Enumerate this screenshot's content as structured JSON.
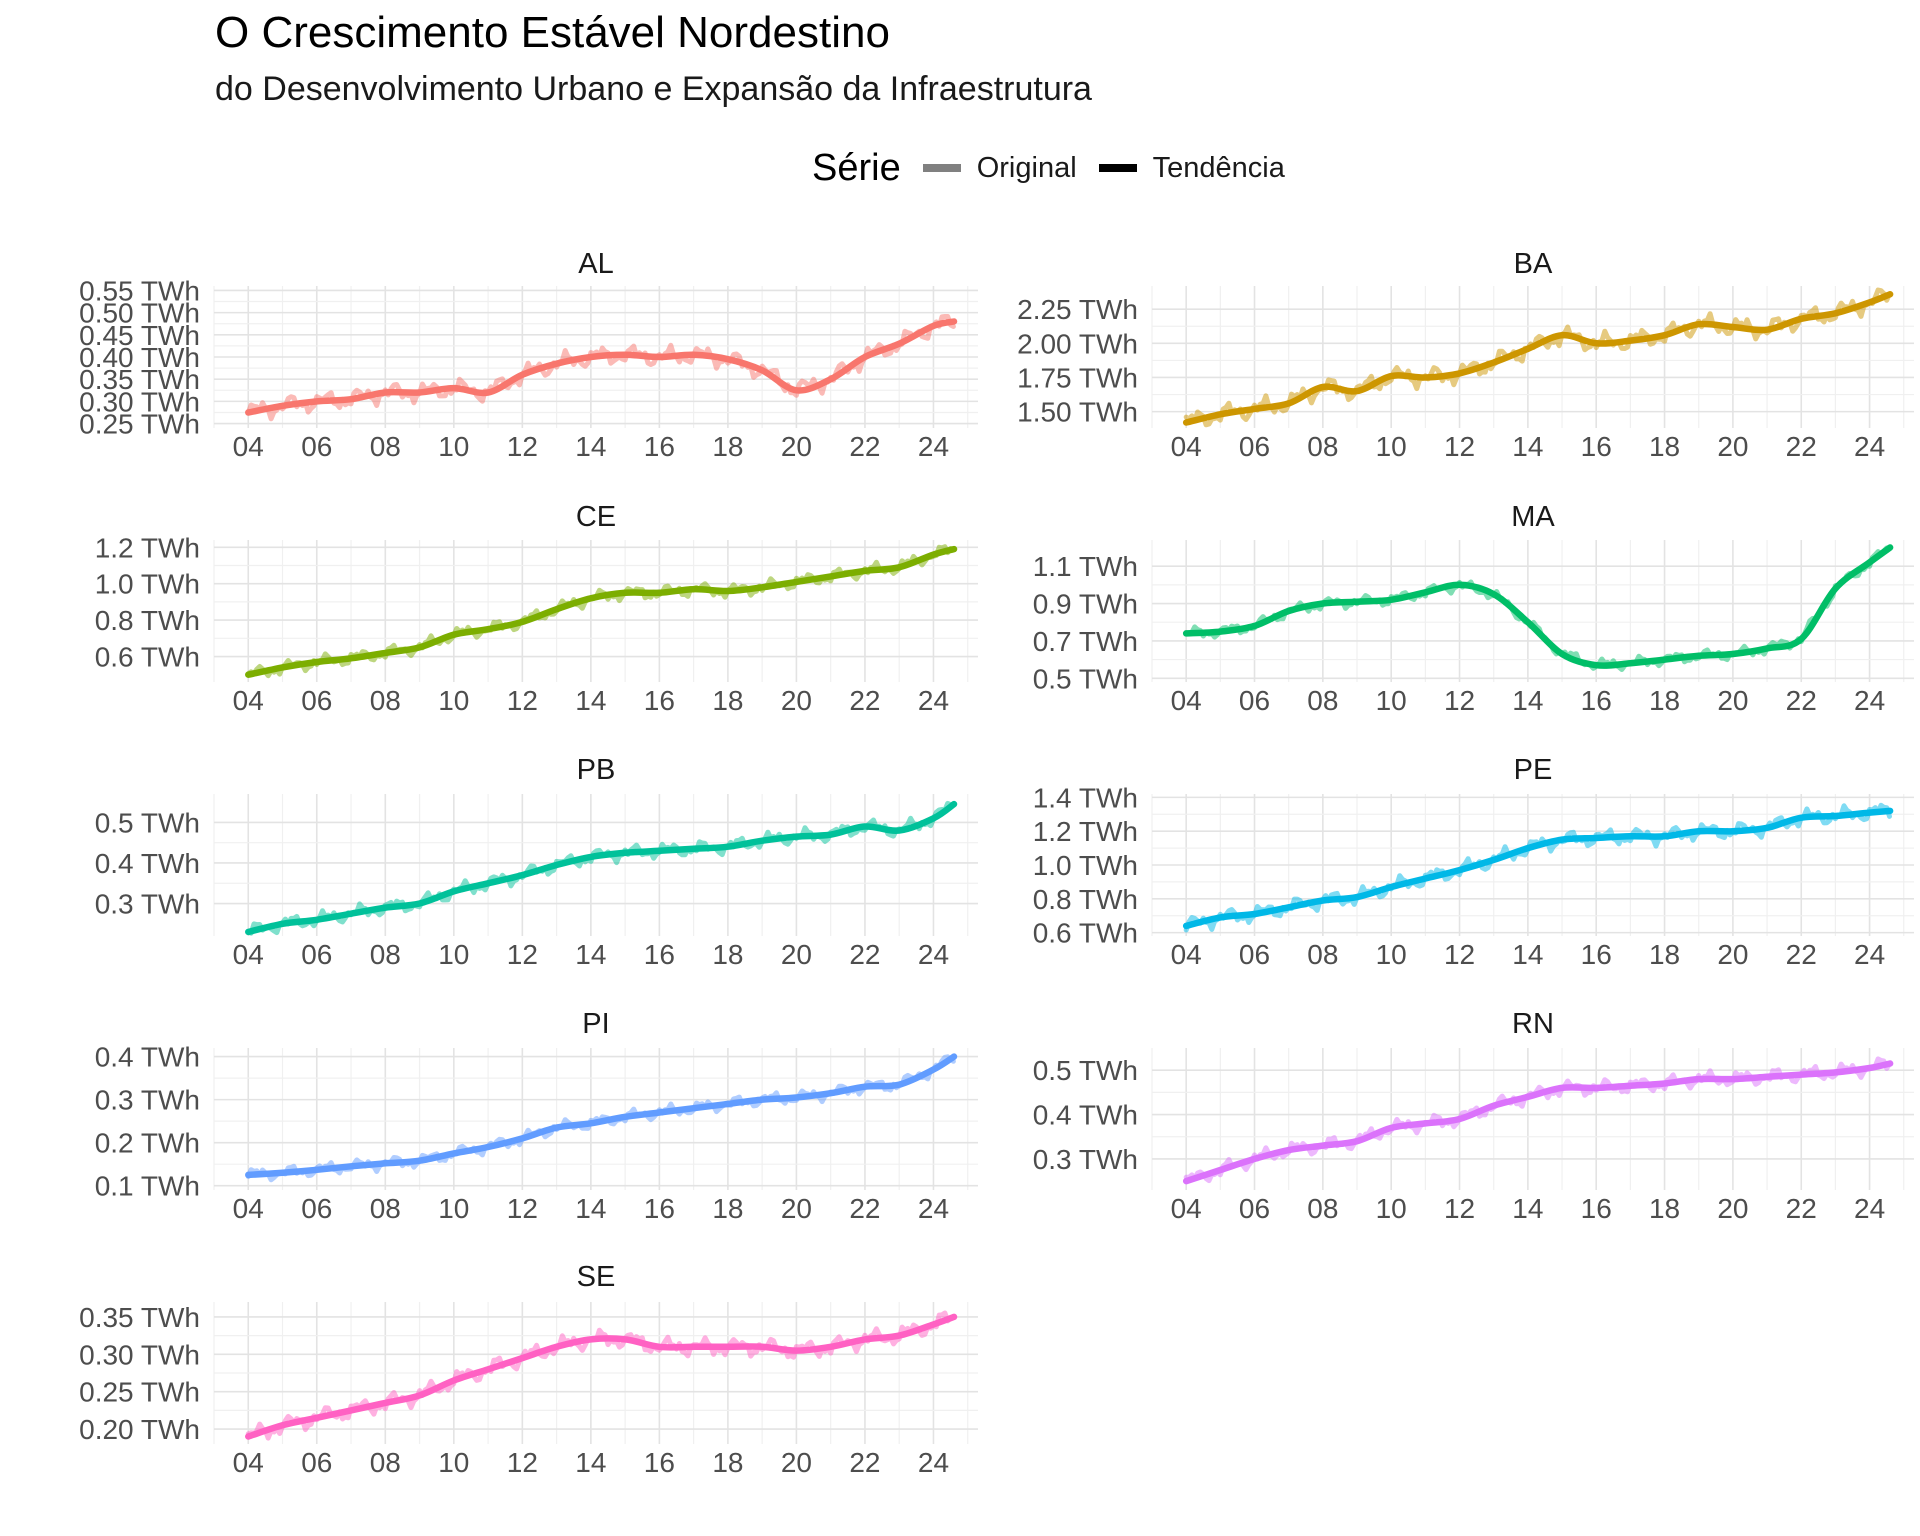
{
  "title": "O Crescimento Estável Nordestino",
  "subtitle": "do Desenvolvimento Urbano e Expansão da Infraestrutura",
  "legend": {
    "title": "Série",
    "items": [
      {
        "label": "Original",
        "color": "#808080"
      },
      {
        "label": "Tendência",
        "color": "#000000"
      }
    ]
  },
  "chart_data": {
    "type": "line",
    "facet_by": "state",
    "x_unit": "year (2-digit)",
    "y_unit": "TWh",
    "x_ticks": [
      "04",
      "06",
      "08",
      "10",
      "12",
      "14",
      "16",
      "18",
      "20",
      "22",
      "24"
    ],
    "xlim": [
      2003.0,
      2025.3
    ],
    "grid": true,
    "legend_position": "top",
    "panels": [
      {
        "name": "AL",
        "color": "#F8766D",
        "ylim": [
          0.24,
          0.56
        ],
        "y_ticks": [
          0.25,
          0.3,
          0.35,
          0.4,
          0.45,
          0.5,
          0.55
        ],
        "y_tick_labels": [
          "0.25 TWh",
          "0.30 TWh",
          "0.35 TWh",
          "0.40 TWh",
          "0.45 TWh",
          "0.50 TWh",
          "0.55 TWh"
        ],
        "trend": [
          [
            2004,
            0.275
          ],
          [
            2005,
            0.29
          ],
          [
            2006,
            0.3
          ],
          [
            2007,
            0.305
          ],
          [
            2008,
            0.32
          ],
          [
            2009,
            0.32
          ],
          [
            2010,
            0.33
          ],
          [
            2011,
            0.32
          ],
          [
            2012,
            0.36
          ],
          [
            2013,
            0.385
          ],
          [
            2014,
            0.4
          ],
          [
            2015,
            0.405
          ],
          [
            2016,
            0.4
          ],
          [
            2017,
            0.405
          ],
          [
            2018,
            0.395
          ],
          [
            2019,
            0.37
          ],
          [
            2020,
            0.325
          ],
          [
            2021,
            0.35
          ],
          [
            2022,
            0.4
          ],
          [
            2023,
            0.43
          ],
          [
            2024,
            0.47
          ],
          [
            2024.6,
            0.48
          ]
        ],
        "noise": 0.018
      },
      {
        "name": "BA",
        "color": "#CD9600",
        "ylim": [
          1.38,
          2.42
        ],
        "y_ticks": [
          1.5,
          1.75,
          2.0,
          2.25
        ],
        "y_tick_labels": [
          "1.50 TWh",
          "1.75 TWh",
          "2.00 TWh",
          "2.25 TWh"
        ],
        "trend": [
          [
            2004,
            1.42
          ],
          [
            2005,
            1.48
          ],
          [
            2006,
            1.52
          ],
          [
            2007,
            1.56
          ],
          [
            2008,
            1.68
          ],
          [
            2009,
            1.65
          ],
          [
            2010,
            1.76
          ],
          [
            2011,
            1.75
          ],
          [
            2012,
            1.78
          ],
          [
            2013,
            1.86
          ],
          [
            2014,
            1.96
          ],
          [
            2015,
            2.06
          ],
          [
            2016,
            2.0
          ],
          [
            2017,
            2.02
          ],
          [
            2018,
            2.06
          ],
          [
            2019,
            2.14
          ],
          [
            2020,
            2.12
          ],
          [
            2021,
            2.1
          ],
          [
            2022,
            2.18
          ],
          [
            2023,
            2.22
          ],
          [
            2024,
            2.3
          ],
          [
            2024.6,
            2.36
          ]
        ],
        "noise": 0.06
      },
      {
        "name": "CE",
        "color": "#7CAE00",
        "ylim": [
          0.46,
          1.24
        ],
        "y_ticks": [
          0.6,
          0.8,
          1.0,
          1.2
        ],
        "y_tick_labels": [
          "0.6 TWh",
          "0.8 TWh",
          "1.0 TWh",
          "1.2 TWh"
        ],
        "trend": [
          [
            2004,
            0.5
          ],
          [
            2005,
            0.54
          ],
          [
            2006,
            0.57
          ],
          [
            2007,
            0.59
          ],
          [
            2008,
            0.62
          ],
          [
            2009,
            0.65
          ],
          [
            2010,
            0.72
          ],
          [
            2011,
            0.75
          ],
          [
            2012,
            0.79
          ],
          [
            2013,
            0.86
          ],
          [
            2014,
            0.92
          ],
          [
            2015,
            0.95
          ],
          [
            2016,
            0.95
          ],
          [
            2017,
            0.97
          ],
          [
            2018,
            0.96
          ],
          [
            2019,
            0.98
          ],
          [
            2020,
            1.01
          ],
          [
            2021,
            1.04
          ],
          [
            2022,
            1.07
          ],
          [
            2023,
            1.09
          ],
          [
            2024,
            1.16
          ],
          [
            2024.6,
            1.19
          ]
        ],
        "noise": 0.03
      },
      {
        "name": "MA",
        "color": "#00BE67",
        "ylim": [
          0.48,
          1.24
        ],
        "y_ticks": [
          0.5,
          0.7,
          0.9,
          1.1
        ],
        "y_tick_labels": [
          "0.5 TWh",
          "0.7 TWh",
          "0.9 TWh",
          "1.1 TWh"
        ],
        "trend": [
          [
            2004,
            0.74
          ],
          [
            2005,
            0.75
          ],
          [
            2006,
            0.78
          ],
          [
            2007,
            0.86
          ],
          [
            2008,
            0.9
          ],
          [
            2009,
            0.91
          ],
          [
            2010,
            0.92
          ],
          [
            2011,
            0.96
          ],
          [
            2012,
            1.0
          ],
          [
            2013,
            0.95
          ],
          [
            2014,
            0.8
          ],
          [
            2015,
            0.63
          ],
          [
            2016,
            0.57
          ],
          [
            2017,
            0.58
          ],
          [
            2018,
            0.6
          ],
          [
            2019,
            0.62
          ],
          [
            2020,
            0.63
          ],
          [
            2021,
            0.66
          ],
          [
            2022,
            0.71
          ],
          [
            2023,
            0.98
          ],
          [
            2024,
            1.12
          ],
          [
            2024.6,
            1.2
          ]
        ],
        "noise": 0.025
      },
      {
        "name": "PB",
        "color": "#00C19A",
        "ylim": [
          0.22,
          0.57
        ],
        "y_ticks": [
          0.3,
          0.4,
          0.5
        ],
        "y_tick_labels": [
          "0.3 TWh",
          "0.4 TWh",
          "0.5 TWh"
        ],
        "trend": [
          [
            2004,
            0.23
          ],
          [
            2005,
            0.25
          ],
          [
            2006,
            0.26
          ],
          [
            2007,
            0.275
          ],
          [
            2008,
            0.29
          ],
          [
            2009,
            0.3
          ],
          [
            2010,
            0.33
          ],
          [
            2011,
            0.35
          ],
          [
            2012,
            0.37
          ],
          [
            2013,
            0.395
          ],
          [
            2014,
            0.415
          ],
          [
            2015,
            0.425
          ],
          [
            2016,
            0.43
          ],
          [
            2017,
            0.435
          ],
          [
            2018,
            0.44
          ],
          [
            2019,
            0.455
          ],
          [
            2020,
            0.465
          ],
          [
            2021,
            0.47
          ],
          [
            2022,
            0.49
          ],
          [
            2023,
            0.48
          ],
          [
            2024,
            0.51
          ],
          [
            2024.6,
            0.545
          ]
        ],
        "noise": 0.015
      },
      {
        "name": "PE",
        "color": "#00B8E7",
        "ylim": [
          0.58,
          1.42
        ],
        "y_ticks": [
          0.6,
          0.8,
          1.0,
          1.2,
          1.4
        ],
        "y_tick_labels": [
          "0.6 TWh",
          "0.8 TWh",
          "1.0 TWh",
          "1.2 TWh",
          "1.4 TWh"
        ],
        "trend": [
          [
            2004,
            0.64
          ],
          [
            2005,
            0.69
          ],
          [
            2006,
            0.71
          ],
          [
            2007,
            0.75
          ],
          [
            2008,
            0.79
          ],
          [
            2009,
            0.81
          ],
          [
            2010,
            0.87
          ],
          [
            2011,
            0.92
          ],
          [
            2012,
            0.97
          ],
          [
            2013,
            1.03
          ],
          [
            2014,
            1.1
          ],
          [
            2015,
            1.15
          ],
          [
            2016,
            1.16
          ],
          [
            2017,
            1.17
          ],
          [
            2018,
            1.17
          ],
          [
            2019,
            1.2
          ],
          [
            2020,
            1.2
          ],
          [
            2021,
            1.22
          ],
          [
            2022,
            1.28
          ],
          [
            2023,
            1.29
          ],
          [
            2024,
            1.31
          ],
          [
            2024.6,
            1.32
          ]
        ],
        "noise": 0.04
      },
      {
        "name": "PI",
        "color": "#619CFF",
        "ylim": [
          0.09,
          0.42
        ],
        "y_ticks": [
          0.1,
          0.2,
          0.3,
          0.4
        ],
        "y_tick_labels": [
          "0.1 TWh",
          "0.2 TWh",
          "0.3 TWh",
          "0.4 TWh"
        ],
        "trend": [
          [
            2004,
            0.125
          ],
          [
            2005,
            0.13
          ],
          [
            2006,
            0.137
          ],
          [
            2007,
            0.145
          ],
          [
            2008,
            0.152
          ],
          [
            2009,
            0.158
          ],
          [
            2010,
            0.175
          ],
          [
            2011,
            0.19
          ],
          [
            2012,
            0.21
          ],
          [
            2013,
            0.235
          ],
          [
            2014,
            0.245
          ],
          [
            2015,
            0.26
          ],
          [
            2016,
            0.27
          ],
          [
            2017,
            0.28
          ],
          [
            2018,
            0.29
          ],
          [
            2019,
            0.3
          ],
          [
            2020,
            0.305
          ],
          [
            2021,
            0.315
          ],
          [
            2022,
            0.33
          ],
          [
            2023,
            0.335
          ],
          [
            2024,
            0.37
          ],
          [
            2024.6,
            0.4
          ]
        ],
        "noise": 0.012
      },
      {
        "name": "RN",
        "color": "#DB72FB",
        "ylim": [
          0.23,
          0.55
        ],
        "y_ticks": [
          0.3,
          0.4,
          0.5
        ],
        "y_tick_labels": [
          "0.3 TWh",
          "0.4 TWh",
          "0.5 TWh"
        ],
        "trend": [
          [
            2004,
            0.25
          ],
          [
            2005,
            0.275
          ],
          [
            2006,
            0.3
          ],
          [
            2007,
            0.32
          ],
          [
            2008,
            0.33
          ],
          [
            2009,
            0.34
          ],
          [
            2010,
            0.37
          ],
          [
            2011,
            0.38
          ],
          [
            2012,
            0.39
          ],
          [
            2013,
            0.42
          ],
          [
            2014,
            0.44
          ],
          [
            2015,
            0.46
          ],
          [
            2016,
            0.46
          ],
          [
            2017,
            0.465
          ],
          [
            2018,
            0.47
          ],
          [
            2019,
            0.48
          ],
          [
            2020,
            0.48
          ],
          [
            2021,
            0.485
          ],
          [
            2022,
            0.49
          ],
          [
            2023,
            0.495
          ],
          [
            2024,
            0.505
          ],
          [
            2024.6,
            0.515
          ]
        ],
        "noise": 0.014
      },
      {
        "name": "SE",
        "color": "#FF61C3",
        "ylim": [
          0.18,
          0.37
        ],
        "y_ticks": [
          0.2,
          0.25,
          0.3,
          0.35
        ],
        "y_tick_labels": [
          "0.20 TWh",
          "0.25 TWh",
          "0.30 TWh",
          "0.35 TWh"
        ],
        "trend": [
          [
            2004,
            0.19
          ],
          [
            2005,
            0.205
          ],
          [
            2006,
            0.215
          ],
          [
            2007,
            0.225
          ],
          [
            2008,
            0.235
          ],
          [
            2009,
            0.245
          ],
          [
            2010,
            0.265
          ],
          [
            2011,
            0.28
          ],
          [
            2012,
            0.295
          ],
          [
            2013,
            0.31
          ],
          [
            2014,
            0.32
          ],
          [
            2015,
            0.32
          ],
          [
            2016,
            0.31
          ],
          [
            2017,
            0.31
          ],
          [
            2018,
            0.31
          ],
          [
            2019,
            0.31
          ],
          [
            2020,
            0.305
          ],
          [
            2021,
            0.31
          ],
          [
            2022,
            0.32
          ],
          [
            2023,
            0.325
          ],
          [
            2024,
            0.34
          ],
          [
            2024.6,
            0.35
          ]
        ],
        "noise": 0.01
      }
    ]
  }
}
